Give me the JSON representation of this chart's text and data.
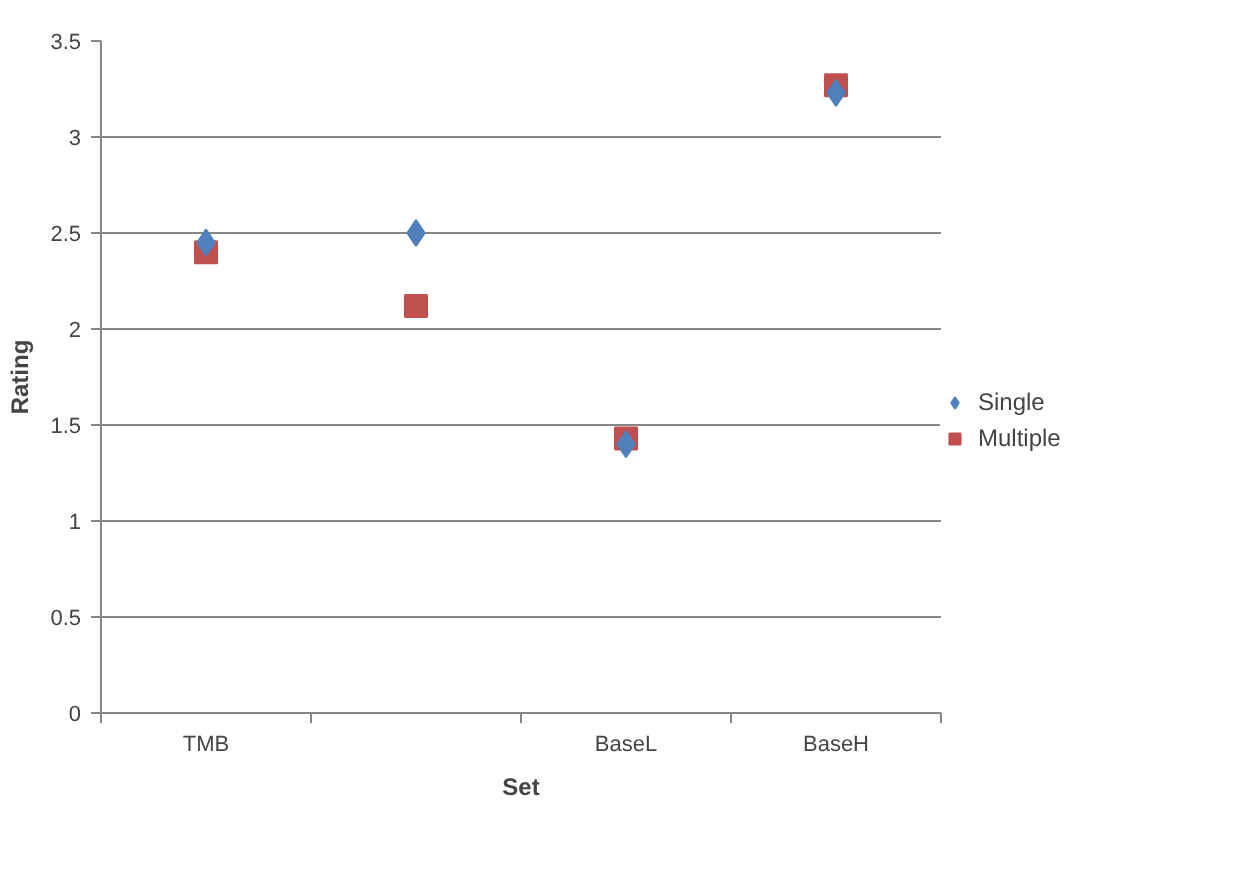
{
  "chart_data": {
    "type": "scatter",
    "xlabel": "Set",
    "ylabel": "Rating",
    "categories": [
      "TMB",
      null,
      "BaseL",
      "BaseH"
    ],
    "series": [
      {
        "name": "Single",
        "color": "#4f81bd",
        "marker": "diamond",
        "values": [
          2.45,
          2.5,
          1.4,
          3.23
        ]
      },
      {
        "name": "Multiple",
        "color": "#c0504d",
        "marker": "square",
        "values": [
          2.4,
          2.12,
          1.43,
          3.27
        ]
      }
    ],
    "ylim": [
      0,
      3.5
    ],
    "yticks": [
      0,
      0.5,
      1,
      1.5,
      2,
      2.5,
      3,
      3.5
    ],
    "grid": "y",
    "legend": "right"
  }
}
